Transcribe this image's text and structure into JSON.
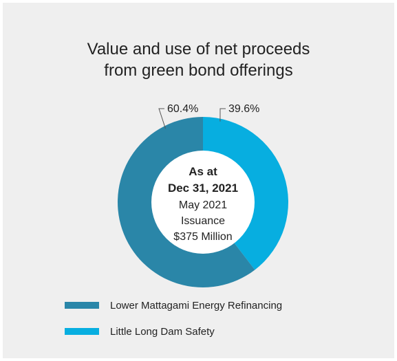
{
  "chart_data": {
    "type": "pie",
    "title": [
      "Value and use of net proceeds",
      "from green bond offerings"
    ],
    "donut": true,
    "center_label": [
      "As at",
      "Dec 31, 2021",
      "May 2021",
      "Issuance",
      "$375 Million"
    ],
    "slices": [
      {
        "name": "Lower Mattagami Energy Refinancing",
        "value": 60.4,
        "label": "60.4%",
        "color": "#2a86a8"
      },
      {
        "name": "Little Long Dam Safety",
        "value": 39.6,
        "label": "39.6%",
        "color": "#07aee0"
      }
    ],
    "legend_position": "bottom-left"
  }
}
